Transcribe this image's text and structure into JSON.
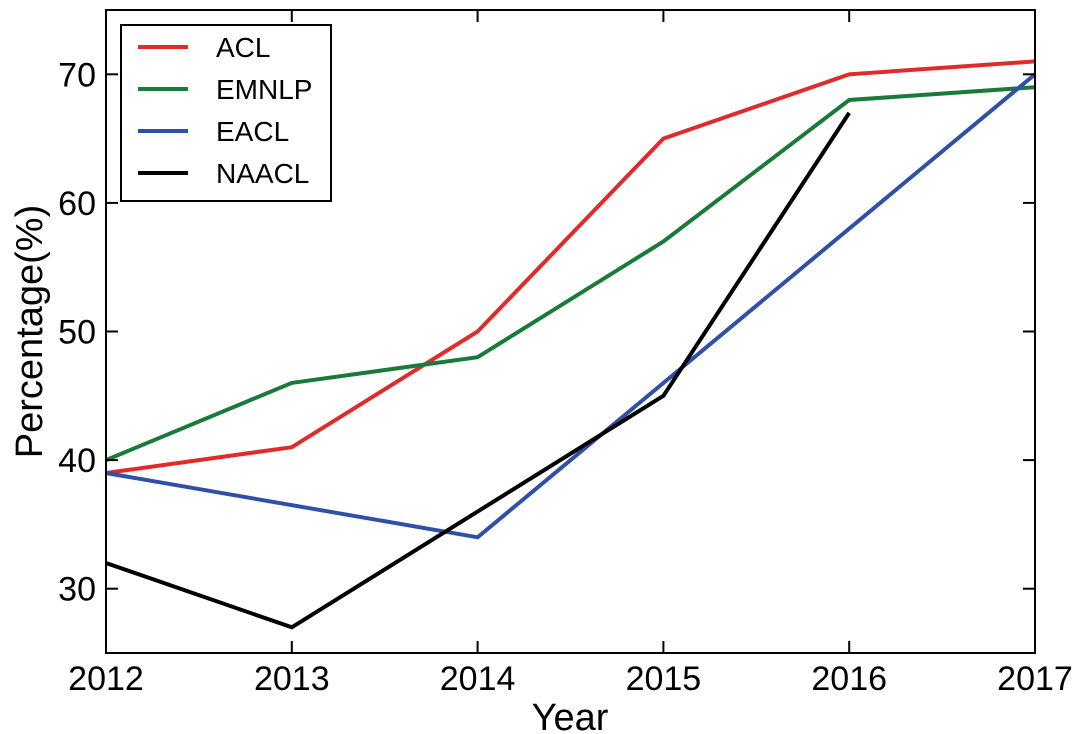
{
  "chart_data": {
    "type": "line",
    "xlabel": "Year",
    "ylabel": "Percentage(%)",
    "x": [
      2012,
      2013,
      2014,
      2015,
      2016,
      2017
    ],
    "xlim": [
      2012,
      2017
    ],
    "ylim": [
      25,
      75
    ],
    "xticks": [
      2012,
      2013,
      2014,
      2015,
      2016,
      2017
    ],
    "yticks": [
      30,
      40,
      50,
      60,
      70
    ],
    "grid": false,
    "legend_position": "top-left",
    "series": [
      {
        "name": "ACL",
        "color": "#e02b2b",
        "points": [
          [
            2012,
            39
          ],
          [
            2013,
            41
          ],
          [
            2014,
            50
          ],
          [
            2015,
            65
          ],
          [
            2016,
            70
          ],
          [
            2017,
            71
          ]
        ]
      },
      {
        "name": "EMNLP",
        "color": "#1a7a3a",
        "points": [
          [
            2012,
            40
          ],
          [
            2013,
            46
          ],
          [
            2014,
            48
          ],
          [
            2015,
            57
          ],
          [
            2016,
            68
          ],
          [
            2017,
            69
          ]
        ]
      },
      {
        "name": "EACL",
        "color": "#3050a8",
        "points": [
          [
            2012,
            39
          ],
          [
            2014,
            34
          ],
          [
            2017,
            70
          ]
        ]
      },
      {
        "name": "NAACL",
        "color": "#000000",
        "points": [
          [
            2012,
            32
          ],
          [
            2013,
            27
          ],
          [
            2015,
            45
          ],
          [
            2016,
            67
          ]
        ]
      }
    ]
  }
}
